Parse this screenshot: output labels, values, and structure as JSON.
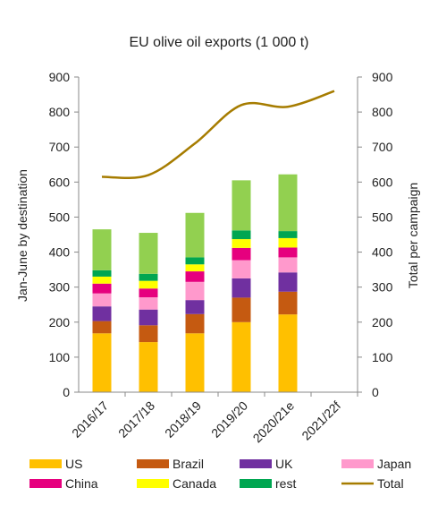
{
  "chart_data": {
    "type": "bar",
    "stacked": true,
    "title": "EU olive oil exports (1 000 t)",
    "ylabel_left": "Jan-June by destination",
    "ylabel_right": "Total per campaign",
    "ylim": [
      0,
      900
    ],
    "yticks": [
      0,
      100,
      200,
      300,
      400,
      500,
      600,
      700,
      800,
      900
    ],
    "categories": [
      "2016/17",
      "2017/18",
      "2018/19",
      "2019/20",
      "2020/21e",
      "2021/22f"
    ],
    "series": [
      {
        "name": "US",
        "color": "#FFC000",
        "values": [
          168,
          143,
          168,
          200,
          222,
          null
        ]
      },
      {
        "name": "Brazil",
        "color": "#C55A11",
        "values": [
          35,
          48,
          55,
          70,
          65,
          null
        ]
      },
      {
        "name": "UK",
        "color": "#7030A0",
        "values": [
          42,
          45,
          40,
          55,
          55,
          null
        ]
      },
      {
        "name": "Japan",
        "color": "#FF99CC",
        "values": [
          37,
          35,
          52,
          52,
          43,
          null
        ]
      },
      {
        "name": "China",
        "color": "#E6007E",
        "values": [
          28,
          25,
          30,
          35,
          28,
          null
        ]
      },
      {
        "name": "Canada",
        "color": "#FFFF00",
        "values": [
          20,
          22,
          20,
          25,
          27,
          null
        ]
      },
      {
        "name": "rest",
        "color": "#00A651",
        "values": [
          18,
          20,
          20,
          25,
          20,
          null
        ]
      },
      {
        "name": "",
        "color": "#92D050",
        "values": [
          117,
          117,
          127,
          143,
          162,
          null
        ]
      }
    ],
    "line": {
      "name": "Total",
      "color": "#A67C00",
      "values": [
        615,
        620,
        710,
        820,
        815,
        860
      ]
    },
    "legend_position": "bottom"
  }
}
